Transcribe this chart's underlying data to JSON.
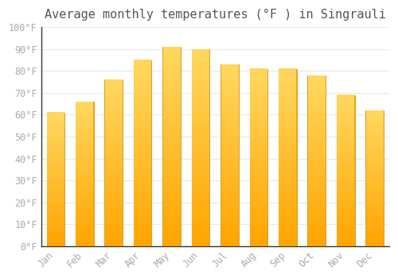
{
  "title": "Average monthly temperatures (°F ) in Singrauli",
  "months": [
    "Jan",
    "Feb",
    "Mar",
    "Apr",
    "May",
    "Jun",
    "Jul",
    "Aug",
    "Sep",
    "Oct",
    "Nov",
    "Dec"
  ],
  "values": [
    61,
    66,
    76,
    85,
    91,
    90,
    83,
    81,
    81,
    78,
    69,
    62
  ],
  "bar_color_bottom": "#FFA500",
  "bar_color_top": "#FFD860",
  "bar_edge_color": "#CC8800",
  "ylim": [
    0,
    100
  ],
  "yticks": [
    0,
    10,
    20,
    30,
    40,
    50,
    60,
    70,
    80,
    90,
    100
  ],
  "ytick_labels": [
    "0°F",
    "10°F",
    "20°F",
    "30°F",
    "40°F",
    "50°F",
    "60°F",
    "70°F",
    "80°F",
    "90°F",
    "100°F"
  ],
  "grid_color": "#e8e8e8",
  "background_color": "#ffffff",
  "font_color": "#aaaaaa",
  "title_font_color": "#555555",
  "title_fontsize": 11,
  "tick_fontsize": 8.5,
  "bar_width": 0.62
}
